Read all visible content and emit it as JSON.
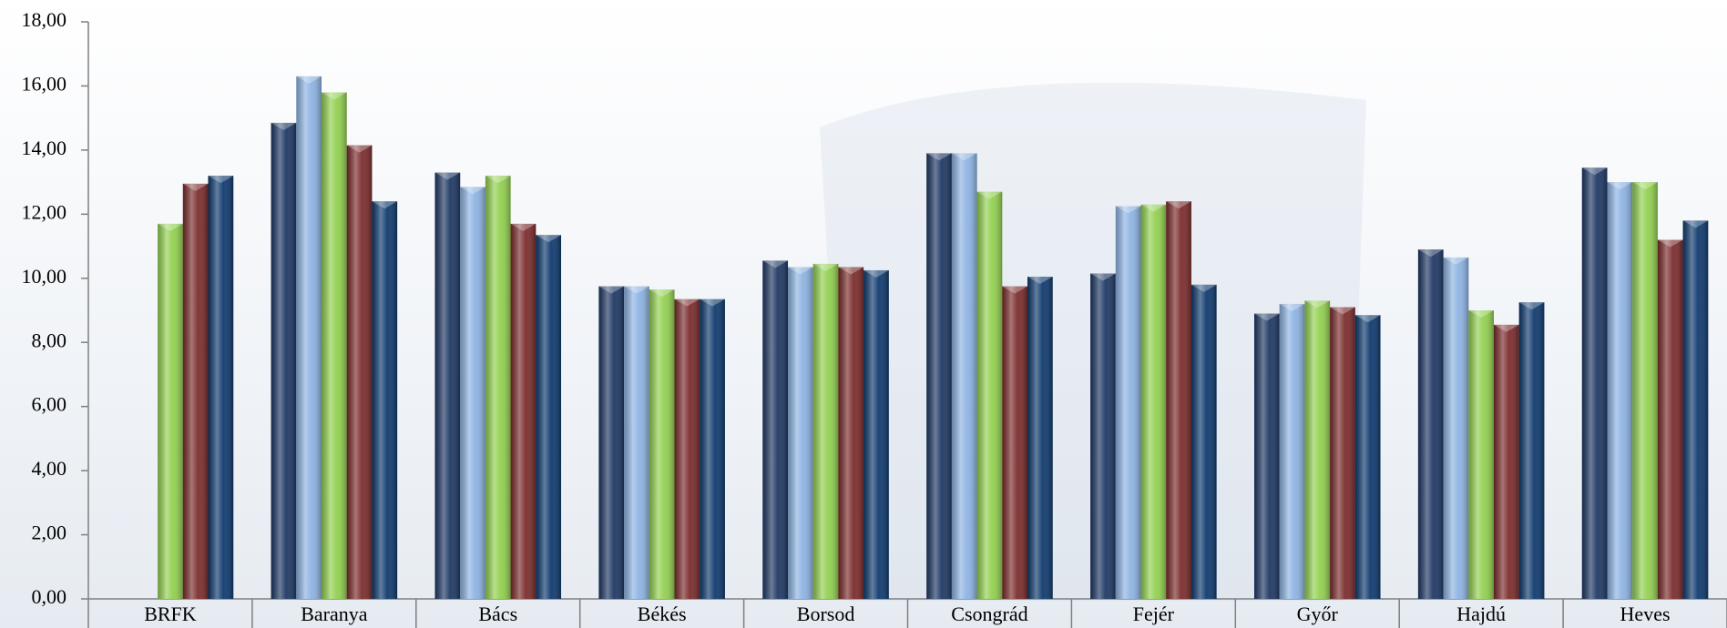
{
  "chart_data": {
    "type": "bar",
    "categories": [
      "BRFK",
      "Baranya",
      "Bács",
      "Békés",
      "Borsod",
      "Csongrád",
      "Fejér",
      "Győr",
      "Hajdú",
      "Heves"
    ],
    "series": [
      {
        "color": "#1f3864",
        "values": [
          null,
          14.85,
          13.3,
          9.75,
          10.55,
          13.9,
          10.15,
          8.9,
          10.9,
          13.45
        ]
      },
      {
        "color": "#8db3e2",
        "values": [
          null,
          16.3,
          12.85,
          9.75,
          10.35,
          13.9,
          12.25,
          9.2,
          10.65,
          13.0
        ]
      },
      {
        "color": "#92d050",
        "values": [
          11.7,
          15.8,
          13.2,
          9.65,
          10.45,
          12.7,
          12.3,
          9.3,
          9.0,
          13.0
        ]
      },
      {
        "color": "#7b2c2c",
        "values": [
          12.95,
          14.15,
          11.7,
          9.35,
          10.35,
          9.75,
          12.4,
          9.1,
          8.55,
          11.2
        ]
      },
      {
        "color": "#0f3a6e",
        "values": [
          13.2,
          12.4,
          11.35,
          9.35,
          10.25,
          10.05,
          9.8,
          8.85,
          9.25,
          11.8
        ]
      }
    ],
    "ylim": [
      0,
      18
    ],
    "yticks": [
      {
        "value": 0,
        "label": "0,00"
      },
      {
        "value": 2,
        "label": "2,00"
      },
      {
        "value": 4,
        "label": "4,00"
      },
      {
        "value": 6,
        "label": "6,00"
      },
      {
        "value": 8,
        "label": "8,00"
      },
      {
        "value": 10,
        "label": "10,00"
      },
      {
        "value": 12,
        "label": "12,00"
      },
      {
        "value": 14,
        "label": "14,00"
      },
      {
        "value": 16,
        "label": "16,00"
      },
      {
        "value": 18,
        "label": "18,00"
      }
    ]
  }
}
